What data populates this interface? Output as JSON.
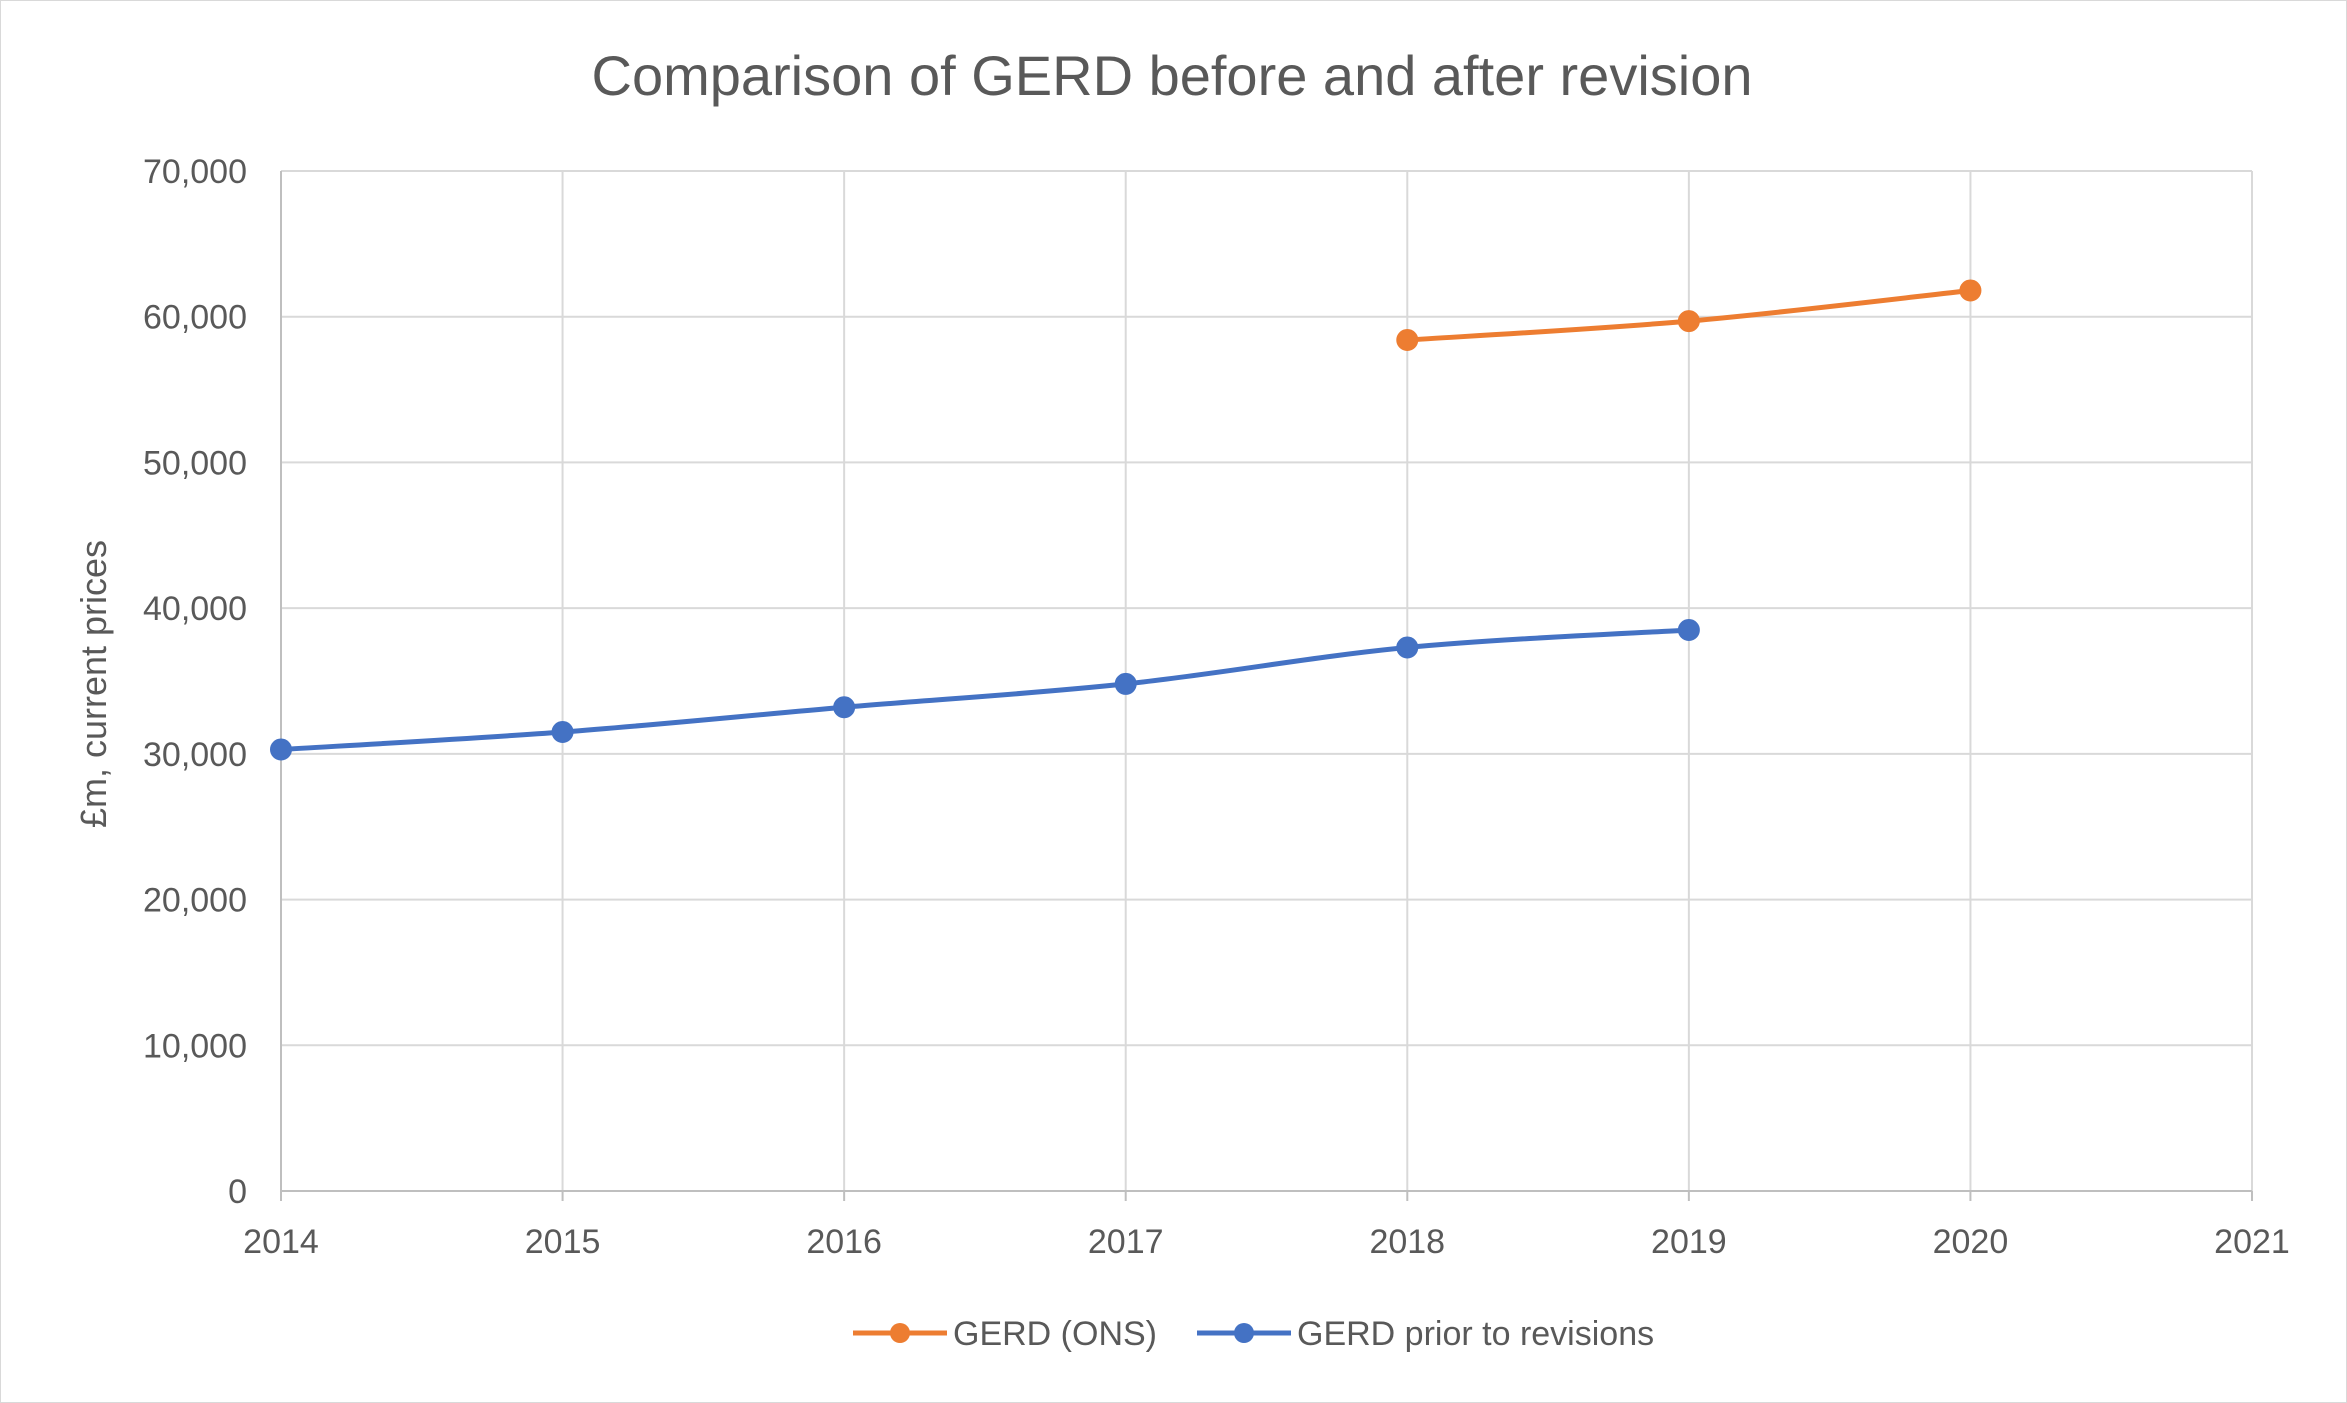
{
  "chart_data": {
    "type": "line",
    "title": "Comparison of GERD before and after revision",
    "xlabel": "",
    "ylabel": "£m, current prices",
    "x": [
      2014,
      2015,
      2016,
      2017,
      2018,
      2019,
      2020,
      2021
    ],
    "x_tick_labels": [
      "2014",
      "2015",
      "2016",
      "2017",
      "2018",
      "2019",
      "2020",
      "2021"
    ],
    "ylim": [
      0,
      70000
    ],
    "y_tick_values": [
      0,
      10000,
      20000,
      30000,
      40000,
      50000,
      60000,
      70000
    ],
    "y_tick_labels": [
      "0",
      "10,000",
      "20,000",
      "30,000",
      "40,000",
      "50,000",
      "60,000",
      "70,000"
    ],
    "grid": true,
    "smooth": true,
    "legend_position": "bottom",
    "series": [
      {
        "name": "GERD (ONS)",
        "color": "#ED7D31",
        "points": [
          [
            2018,
            58400
          ],
          [
            2019,
            59700
          ],
          [
            2020,
            61800
          ]
        ]
      },
      {
        "name": "GERD prior to revisions",
        "color": "#4472C4",
        "points": [
          [
            2014,
            30300
          ],
          [
            2015,
            31500
          ],
          [
            2016,
            33200
          ],
          [
            2017,
            34800
          ],
          [
            2018,
            37300
          ],
          [
            2019,
            38500
          ]
        ]
      }
    ]
  }
}
